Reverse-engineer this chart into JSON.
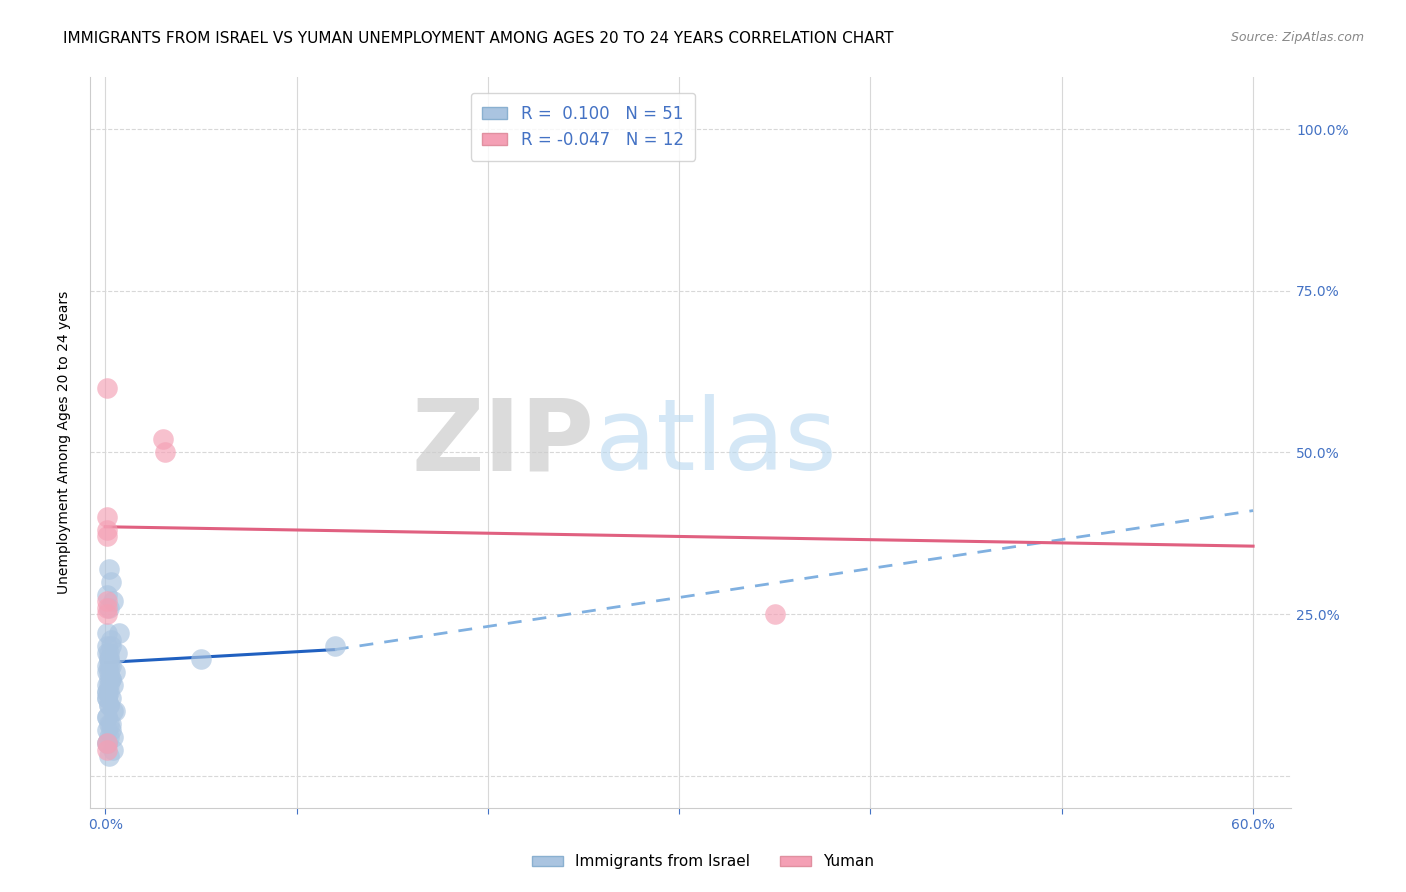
{
  "title": "IMMIGRANTS FROM ISRAEL VS YUMAN UNEMPLOYMENT AMONG AGES 20 TO 24 YEARS CORRELATION CHART",
  "source": "Source: ZipAtlas.com",
  "ylabel": "Unemployment Among Ages 20 to 24 years",
  "legend_label_blue": "Immigrants from Israel",
  "legend_label_pink": "Yuman",
  "blue_color": "#aac4e0",
  "pink_color": "#f4a0b5",
  "trend_blue_solid_color": "#2060c0",
  "trend_blue_dash_color": "#80b0e0",
  "trend_pink_color": "#e06080",
  "blue_scatter": {
    "x": [
      0.002,
      0.003,
      0.001,
      0.004,
      0.002,
      0.001,
      0.003,
      0.002,
      0.001,
      0.002,
      0.001,
      0.003,
      0.002,
      0.001,
      0.002,
      0.001,
      0.001,
      0.002,
      0.003,
      0.004,
      0.001,
      0.002,
      0.001,
      0.003,
      0.002,
      0.004,
      0.001,
      0.002,
      0.001,
      0.003,
      0.002,
      0.005,
      0.001,
      0.002,
      0.003,
      0.004,
      0.001,
      0.002,
      0.007,
      0.006,
      0.003,
      0.005,
      0.001,
      0.004,
      0.002,
      0.003,
      0.001,
      0.002,
      0.001,
      0.05,
      0.12
    ],
    "y": [
      0.32,
      0.3,
      0.28,
      0.27,
      0.26,
      0.22,
      0.2,
      0.18,
      0.19,
      0.17,
      0.16,
      0.21,
      0.15,
      0.14,
      0.13,
      0.12,
      0.17,
      0.19,
      0.15,
      0.14,
      0.13,
      0.16,
      0.12,
      0.15,
      0.11,
      0.1,
      0.09,
      0.14,
      0.13,
      0.12,
      0.11,
      0.1,
      0.09,
      0.08,
      0.07,
      0.06,
      0.2,
      0.18,
      0.22,
      0.19,
      0.17,
      0.16,
      0.05,
      0.04,
      0.03,
      0.08,
      0.07,
      0.06,
      0.05,
      0.18,
      0.2
    ]
  },
  "pink_scatter": {
    "x": [
      0.001,
      0.03,
      0.031,
      0.001,
      0.001,
      0.001,
      0.001,
      0.001,
      0.001,
      0.35,
      0.001,
      0.001
    ],
    "y": [
      0.6,
      0.52,
      0.5,
      0.4,
      0.38,
      0.27,
      0.26,
      0.25,
      0.37,
      0.25,
      0.04,
      0.05
    ]
  },
  "trend_blue_x0": 0.0,
  "trend_blue_y0": 0.175,
  "trend_blue_x1": 0.12,
  "trend_blue_y1": 0.195,
  "trend_blue_x2": 0.6,
  "trend_blue_y2": 0.41,
  "trend_pink_x0": 0.0,
  "trend_pink_y0": 0.385,
  "trend_pink_x1": 0.6,
  "trend_pink_y1": 0.355,
  "xlim": [
    -0.008,
    0.62
  ],
  "ylim": [
    -0.05,
    1.08
  ],
  "background_color": "#ffffff",
  "grid_color": "#d8d8d8",
  "title_fontsize": 11,
  "axis_label_fontsize": 10,
  "tick_fontsize": 10,
  "blue_tick_color": "#4472c4",
  "legend_R_blue": "R =  0.100   N = 51",
  "legend_R_pink": "R = -0.047   N = 12"
}
